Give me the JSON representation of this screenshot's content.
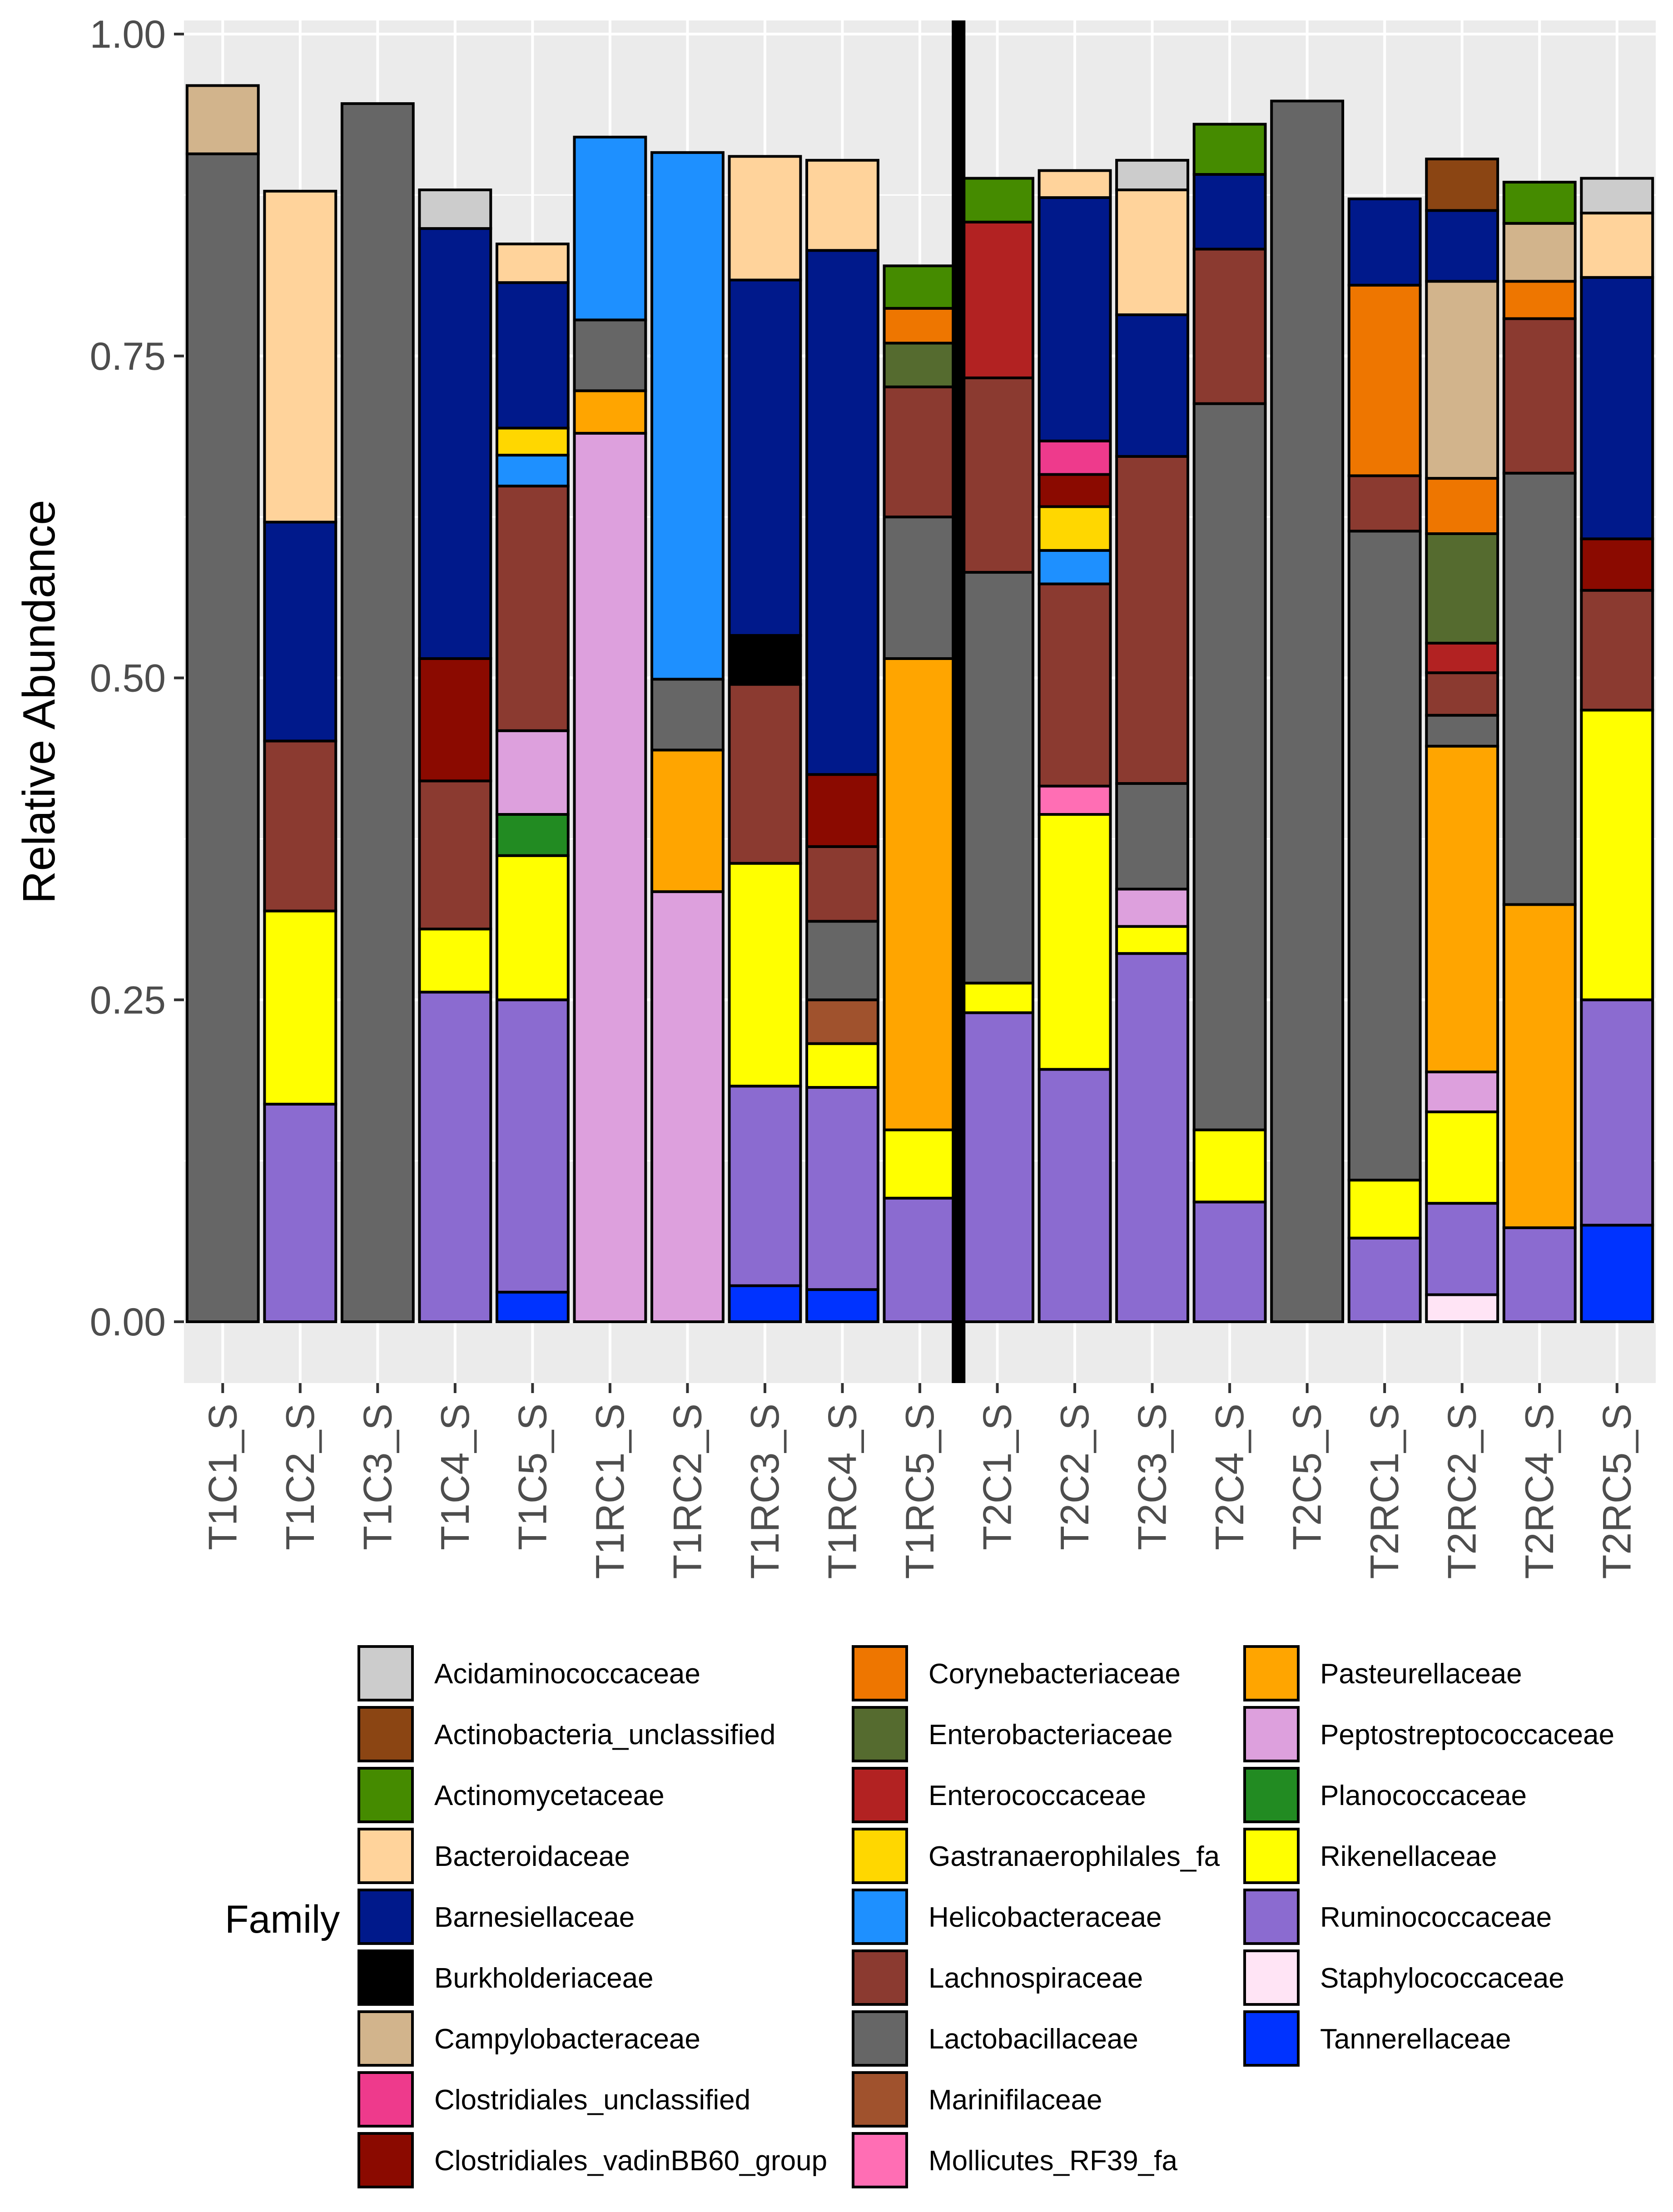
{
  "chart_data": {
    "type": "stacked-bar",
    "ylabel": "Relative Abundance",
    "xlabel": "",
    "ylim": [
      0,
      1
    ],
    "yticks": [
      "0.00",
      "0.25",
      "0.50",
      "0.75",
      "1.00"
    ],
    "ytick_values": [
      0,
      0.25,
      0.5,
      0.75,
      1.0
    ],
    "legend_title": "Family",
    "legend_position": "bottom",
    "divider_after_category": "T1RC5_S",
    "categories": [
      "T1C1_S",
      "T1C2_S",
      "T1C3_S",
      "T1C4_S",
      "T1C5_S",
      "T1RC1_S",
      "T1RC2_S",
      "T1RC3_S",
      "T1RC4_S",
      "T1RC5_S",
      "T2C1_S",
      "T2C2_S",
      "T2C3_S",
      "T2C4_S",
      "T2C5_S",
      "T2RC1_S",
      "T2RC2_S",
      "T2RC4_S",
      "T2RC5_S"
    ],
    "families": [
      {
        "name": "Acidaminococcaceae",
        "color": "#CCCCCC"
      },
      {
        "name": "Actinobacteria_unclassified",
        "color": "#8B4513"
      },
      {
        "name": "Actinomycetaceae",
        "color": "#458B00"
      },
      {
        "name": "Bacteroidaceae",
        "color": "#FFD39B"
      },
      {
        "name": "Barnesiellaceae",
        "color": "#00198B"
      },
      {
        "name": "Burkholderiaceae",
        "color": "#000000"
      },
      {
        "name": "Campylobacteraceae",
        "color": "#D2B48C"
      },
      {
        "name": "Clostridiales_unclassified",
        "color": "#EE3A8C"
      },
      {
        "name": "Clostridiales_vadinBB60_group",
        "color": "#8B0A00"
      },
      {
        "name": "Corynebacteriaceae",
        "color": "#EE7600"
      },
      {
        "name": "Enterobacteriaceae",
        "color": "#556B2F"
      },
      {
        "name": "Enterococcaceae",
        "color": "#B22222"
      },
      {
        "name": "Gastranaerophilales_fa",
        "color": "#FFD700"
      },
      {
        "name": "Helicobacteraceae",
        "color": "#1E90FF"
      },
      {
        "name": "Lachnospiraceae",
        "color": "#8B3A30"
      },
      {
        "name": "Lactobacillaceae",
        "color": "#666666"
      },
      {
        "name": "Marinifilaceae",
        "color": "#A0522D"
      },
      {
        "name": "Mollicutes_RF39_fa",
        "color": "#FF6EB4"
      },
      {
        "name": "Pasteurellaceae",
        "color": "#FFA500"
      },
      {
        "name": "Peptostreptococcaceae",
        "color": "#DDA0DD"
      },
      {
        "name": "Planococcaceae",
        "color": "#228B22"
      },
      {
        "name": "Rikenellaceae",
        "color": "#FFFF00"
      },
      {
        "name": "Ruminococcaceae",
        "color": "#8B6BD0"
      },
      {
        "name": "Staphylococcaceae",
        "color": "#FFE4F5"
      },
      {
        "name": "Tannerellaceae",
        "color": "#0033FF"
      }
    ],
    "series": [
      {
        "category": "T1C1_S",
        "segments": [
          {
            "family": "Lactobacillaceae",
            "value": 0.907
          },
          {
            "family": "Campylobacteraceae",
            "value": 0.053
          }
        ]
      },
      {
        "category": "T1C2_S",
        "segments": [
          {
            "family": "Ruminococcaceae",
            "value": 0.169
          },
          {
            "family": "Rikenellaceae",
            "value": 0.15
          },
          {
            "family": "Lachnospiraceae",
            "value": 0.132
          },
          {
            "family": "Barnesiellaceae",
            "value": 0.17
          },
          {
            "family": "Bacteroidaceae",
            "value": 0.257
          }
        ]
      },
      {
        "category": "T1C3_S",
        "segments": [
          {
            "family": "Lactobacillaceae",
            "value": 0.946
          }
        ]
      },
      {
        "category": "T1C4_S",
        "segments": [
          {
            "family": "Ruminococcaceae",
            "value": 0.256
          },
          {
            "family": "Rikenellaceae",
            "value": 0.049
          },
          {
            "family": "Lachnospiraceae",
            "value": 0.115
          },
          {
            "family": "Clostridiales_vadinBB60_group",
            "value": 0.095
          },
          {
            "family": "Barnesiellaceae",
            "value": 0.334
          },
          {
            "family": "Acidaminococcaceae",
            "value": 0.03
          }
        ]
      },
      {
        "category": "T1C5_S",
        "segments": [
          {
            "family": "Tannerellaceae",
            "value": 0.023
          },
          {
            "family": "Ruminococcaceae",
            "value": 0.227
          },
          {
            "family": "Rikenellaceae",
            "value": 0.112
          },
          {
            "family": "Planococcaceae",
            "value": 0.032
          },
          {
            "family": "Peptostreptococcaceae",
            "value": 0.065
          },
          {
            "family": "Lachnospiraceae",
            "value": 0.19
          },
          {
            "family": "Helicobacteraceae",
            "value": 0.024
          },
          {
            "family": "Gastranaerophilales_fa",
            "value": 0.021
          },
          {
            "family": "Barnesiellaceae",
            "value": 0.113
          },
          {
            "family": "Bacteroidaceae",
            "value": 0.03
          }
        ]
      },
      {
        "category": "T1RC1_S",
        "segments": [
          {
            "family": "Peptostreptococcaceae",
            "value": 0.69
          },
          {
            "family": "Pasteurellaceae",
            "value": 0.033
          },
          {
            "family": "Lactobacillaceae",
            "value": 0.055
          },
          {
            "family": "Helicobacteraceae",
            "value": 0.142
          }
        ]
      },
      {
        "category": "T1RC2_S",
        "segments": [
          {
            "family": "Peptostreptococcaceae",
            "value": 0.334
          },
          {
            "family": "Pasteurellaceae",
            "value": 0.11
          },
          {
            "family": "Lactobacillaceae",
            "value": 0.055
          },
          {
            "family": "Helicobacteraceae",
            "value": 0.409
          }
        ]
      },
      {
        "category": "T1RC3_S",
        "segments": [
          {
            "family": "Tannerellaceae",
            "value": 0.028
          },
          {
            "family": "Ruminococcaceae",
            "value": 0.155
          },
          {
            "family": "Rikenellaceae",
            "value": 0.173
          },
          {
            "family": "Lachnospiraceae",
            "value": 0.139
          },
          {
            "family": "Burkholderiaceae",
            "value": 0.038
          },
          {
            "family": "Barnesiellaceae",
            "value": 0.276
          },
          {
            "family": "Bacteroidaceae",
            "value": 0.096
          }
        ]
      },
      {
        "category": "T1RC4_S",
        "segments": [
          {
            "family": "Tannerellaceae",
            "value": 0.025
          },
          {
            "family": "Ruminococcaceae",
            "value": 0.157
          },
          {
            "family": "Rikenellaceae",
            "value": 0.034
          },
          {
            "family": "Marinifilaceae",
            "value": 0.034
          },
          {
            "family": "Lactobacillaceae",
            "value": 0.061
          },
          {
            "family": "Lachnospiraceae",
            "value": 0.058
          },
          {
            "family": "Clostridiales_vadinBB60_group",
            "value": 0.056
          },
          {
            "family": "Barnesiellaceae",
            "value": 0.407
          },
          {
            "family": "Bacteroidaceae",
            "value": 0.07
          }
        ]
      },
      {
        "category": "T1RC5_S",
        "segments": [
          {
            "family": "Ruminococcaceae",
            "value": 0.096
          },
          {
            "family": "Rikenellaceae",
            "value": 0.053
          },
          {
            "family": "Pasteurellaceae",
            "value": 0.366
          },
          {
            "family": "Lactobacillaceae",
            "value": 0.11
          },
          {
            "family": "Lachnospiraceae",
            "value": 0.101
          },
          {
            "family": "Enterobacteriaceae",
            "value": 0.034
          },
          {
            "family": "Corynebacteriaceae",
            "value": 0.027
          },
          {
            "family": "Actinomycetaceae",
            "value": 0.033
          }
        ]
      },
      {
        "category": "T2C1_S",
        "segments": [
          {
            "family": "Ruminococcaceae",
            "value": 0.24
          },
          {
            "family": "Rikenellaceae",
            "value": 0.023
          },
          {
            "family": "Lactobacillaceae",
            "value": 0.319
          },
          {
            "family": "Lachnospiraceae",
            "value": 0.151
          },
          {
            "family": "Enterococcaceae",
            "value": 0.121
          },
          {
            "family": "Actinomycetaceae",
            "value": 0.034
          }
        ]
      },
      {
        "category": "T2C2_S",
        "segments": [
          {
            "family": "Ruminococcaceae",
            "value": 0.196
          },
          {
            "family": "Rikenellaceae",
            "value": 0.198
          },
          {
            "family": "Mollicutes_RF39_fa",
            "value": 0.022
          },
          {
            "family": "Lachnospiraceae",
            "value": 0.157
          },
          {
            "family": "Helicobacteraceae",
            "value": 0.026
          },
          {
            "family": "Gastranaerophilales_fa",
            "value": 0.034
          },
          {
            "family": "Clostridiales_vadinBB60_group",
            "value": 0.025
          },
          {
            "family": "Clostridiales_unclassified",
            "value": 0.026
          },
          {
            "family": "Barnesiellaceae",
            "value": 0.189
          },
          {
            "family": "Bacteroidaceae",
            "value": 0.021
          }
        ]
      },
      {
        "category": "T2C3_S",
        "segments": [
          {
            "family": "Ruminococcaceae",
            "value": 0.286
          },
          {
            "family": "Rikenellaceae",
            "value": 0.021
          },
          {
            "family": "Peptostreptococcaceae",
            "value": 0.029
          },
          {
            "family": "Lactobacillaceae",
            "value": 0.082
          },
          {
            "family": "Lachnospiraceae",
            "value": 0.254
          },
          {
            "family": "Barnesiellaceae",
            "value": 0.11
          },
          {
            "family": "Bacteroidaceae",
            "value": 0.097
          },
          {
            "family": "Acidaminococcaceae",
            "value": 0.023
          }
        ]
      },
      {
        "category": "T2C4_S",
        "segments": [
          {
            "family": "Ruminococcaceae",
            "value": 0.093
          },
          {
            "family": "Rikenellaceae",
            "value": 0.056
          },
          {
            "family": "Lactobacillaceae",
            "value": 0.564
          },
          {
            "family": "Lachnospiraceae",
            "value": 0.12
          },
          {
            "family": "Barnesiellaceae",
            "value": 0.058
          },
          {
            "family": "Actinomycetaceae",
            "value": 0.039
          }
        ]
      },
      {
        "category": "T2C5_S",
        "segments": [
          {
            "family": "Lactobacillaceae",
            "value": 0.948
          }
        ]
      },
      {
        "category": "T2RC1_S",
        "segments": [
          {
            "family": "Ruminococcaceae",
            "value": 0.065
          },
          {
            "family": "Rikenellaceae",
            "value": 0.045
          },
          {
            "family": "Lactobacillaceae",
            "value": 0.504
          },
          {
            "family": "Lachnospiraceae",
            "value": 0.043
          },
          {
            "family": "Corynebacteriaceae",
            "value": 0.148
          },
          {
            "family": "Barnesiellaceae",
            "value": 0.067
          }
        ]
      },
      {
        "category": "T2RC2_S",
        "segments": [
          {
            "family": "Staphylococcaceae",
            "value": 0.021
          },
          {
            "family": "Ruminococcaceae",
            "value": 0.071
          },
          {
            "family": "Rikenellaceae",
            "value": 0.071
          },
          {
            "family": "Peptostreptococcaceae",
            "value": 0.031
          },
          {
            "family": "Pasteurellaceae",
            "value": 0.253
          },
          {
            "family": "Lactobacillaceae",
            "value": 0.024
          },
          {
            "family": "Lachnospiraceae",
            "value": 0.033
          },
          {
            "family": "Enterococcaceae",
            "value": 0.023
          },
          {
            "family": "Enterobacteriaceae",
            "value": 0.085
          },
          {
            "family": "Corynebacteriaceae",
            "value": 0.043
          },
          {
            "family": "Campylobacteraceae",
            "value": 0.153
          },
          {
            "family": "Barnesiellaceae",
            "value": 0.055
          },
          {
            "family": "Actinobacteria_unclassified",
            "value": 0.04
          }
        ]
      },
      {
        "category": "T2RC4_S",
        "segments": [
          {
            "family": "Ruminococcaceae",
            "value": 0.073
          },
          {
            "family": "Pasteurellaceae",
            "value": 0.251
          },
          {
            "family": "Lactobacillaceae",
            "value": 0.335
          },
          {
            "family": "Lachnospiraceae",
            "value": 0.12
          },
          {
            "family": "Corynebacteriaceae",
            "value": 0.029
          },
          {
            "family": "Campylobacteraceae",
            "value": 0.045
          },
          {
            "family": "Actinomycetaceae",
            "value": 0.032
          }
        ]
      },
      {
        "category": "T2RC5_S",
        "segments": [
          {
            "family": "Tannerellaceae",
            "value": 0.075
          },
          {
            "family": "Ruminococcaceae",
            "value": 0.175
          },
          {
            "family": "Rikenellaceae",
            "value": 0.225
          },
          {
            "family": "Lachnospiraceae",
            "value": 0.093
          },
          {
            "family": "Clostridiales_vadinBB60_group",
            "value": 0.04
          },
          {
            "family": "Barnesiellaceae",
            "value": 0.203
          },
          {
            "family": "Bacteroidaceae",
            "value": 0.05
          },
          {
            "family": "Acidaminococcaceae",
            "value": 0.027
          }
        ]
      }
    ]
  }
}
